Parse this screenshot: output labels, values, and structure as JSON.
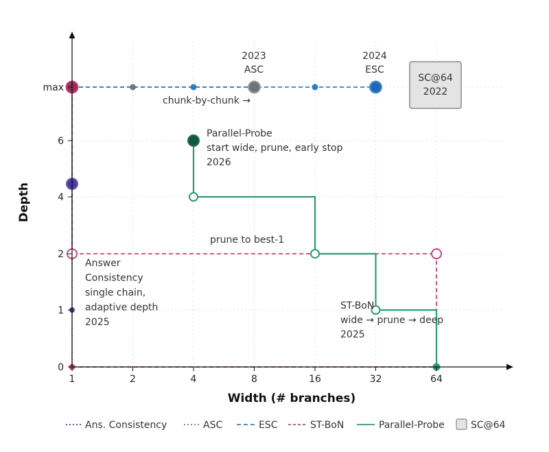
{
  "colors": {
    "ans": "#4a3a9a",
    "asc": "#6c7a86",
    "esc": "#2f7dc7",
    "stbon": "#c2487a",
    "pp": "#2e9a72",
    "pp_dark": "#0d5a3c",
    "sc64_fill": "#e4e4e4",
    "sc64_stroke": "#888888"
  },
  "chart_data": {
    "type": "line",
    "xlabel": "Width (# branches)",
    "ylabel": "Depth",
    "x_ticks": [
      "1",
      "2",
      "4",
      "8",
      "16",
      "32",
      "64"
    ],
    "x_scale": "log2",
    "xlim": [
      1,
      64
    ],
    "y_ticks": [
      "0",
      "1",
      "2",
      "4",
      "6",
      "max"
    ],
    "ylim": [
      "0",
      "max"
    ],
    "grid": true,
    "legend_position": "bottom",
    "series": [
      {
        "key": "ans",
        "name": "Ans. Consistency",
        "style": "dotted",
        "points": [
          {
            "x": 1,
            "y": "0"
          },
          {
            "x": 1,
            "y": "1"
          },
          {
            "x": 1,
            "y": "2"
          },
          {
            "x": 1,
            "y": "4.5"
          },
          {
            "x": 1,
            "y": "max"
          }
        ]
      },
      {
        "key": "asc",
        "name": "ASC",
        "style": "dashed",
        "points": [
          {
            "x": 1,
            "y": "max"
          },
          {
            "x": 2,
            "y": "max"
          },
          {
            "x": 4,
            "y": "max"
          },
          {
            "x": 8,
            "y": "max"
          }
        ]
      },
      {
        "key": "esc",
        "name": "ESC",
        "style": "dashed",
        "points": [
          {
            "x": 1,
            "y": "max"
          },
          {
            "x": 4,
            "y": "max"
          },
          {
            "x": 16,
            "y": "max"
          },
          {
            "x": 32,
            "y": "max"
          }
        ]
      },
      {
        "key": "stbon",
        "name": "ST-BoN",
        "style": "dashed",
        "points": [
          {
            "x": 1,
            "y": "0"
          },
          {
            "x": 64,
            "y": "0"
          },
          {
            "x": 64,
            "y": "2"
          },
          {
            "x": 1,
            "y": "2"
          },
          {
            "x": 1,
            "y": "max"
          }
        ]
      },
      {
        "key": "pp",
        "name": "Parallel-Probe",
        "style": "solid",
        "points": [
          {
            "x": 4,
            "y": "6"
          },
          {
            "x": 4,
            "y": "4"
          },
          {
            "x": 16,
            "y": "4"
          },
          {
            "x": 16,
            "y": "2"
          },
          {
            "x": 32,
            "y": "2"
          },
          {
            "x": 32,
            "y": "1"
          },
          {
            "x": 64,
            "y": "1"
          },
          {
            "x": 64,
            "y": "0"
          }
        ]
      }
    ],
    "sc64": {
      "name": "SC@64",
      "label_lines": [
        "SC@64",
        "2022"
      ],
      "x": 64,
      "y": "max"
    },
    "annotations": {
      "asc": {
        "lines": [
          "2023",
          "ASC"
        ]
      },
      "esc": {
        "lines": [
          "2024",
          "ESC"
        ]
      },
      "chunk": "chunk-by-chunk →",
      "pp": {
        "lines": [
          "Parallel-Probe",
          "start wide, prune, early stop",
          "2026"
        ]
      },
      "prune": "prune to best-1",
      "ans": {
        "lines": [
          "Answer",
          "Consistency",
          "single chain,",
          "adaptive depth",
          "2025"
        ]
      },
      "stbon": {
        "lines": [
          "ST-BoN",
          "wide → prune → deep",
          "2025"
        ]
      }
    },
    "legend": [
      "Ans. Consistency",
      "ASC",
      "ESC",
      "ST-BoN",
      "Parallel-Probe",
      "SC@64"
    ]
  }
}
